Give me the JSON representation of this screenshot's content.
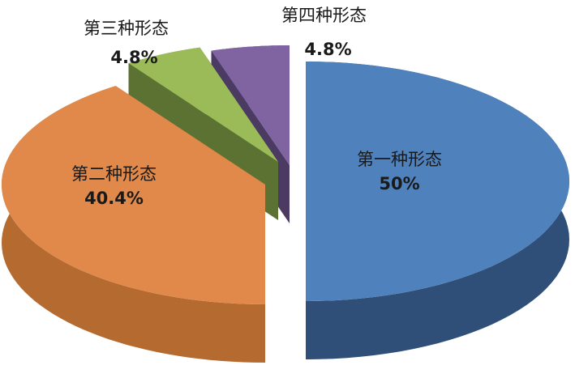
{
  "chart_data": {
    "type": "pie",
    "style": "3d-exploded",
    "categories": [
      "第一种形态",
      "第二种形态",
      "第三种形态",
      "第四种形态"
    ],
    "values": [
      50,
      40.4,
      4.8,
      4.8
    ],
    "value_labels": [
      "50%",
      "40.4%",
      "4.8%",
      "4.8%"
    ],
    "colors": [
      "#4f81bd",
      "#e0894a",
      "#9bbb59",
      "#8064a2"
    ],
    "side_colors": [
      "#2f4f78",
      "#b56a30",
      "#5c7232",
      "#4b3a62"
    ],
    "legend": "none"
  }
}
